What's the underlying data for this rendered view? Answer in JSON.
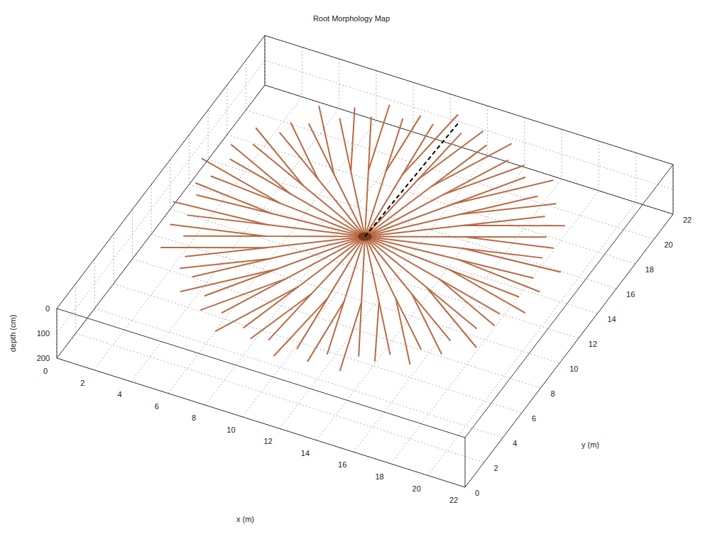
{
  "chart_data": {
    "type": "line3d",
    "title": "Root Morphology Map",
    "xlabel": "x (m)",
    "ylabel": "y (m)",
    "zlabel": "depth (cm)",
    "xlim": [
      0,
      22
    ],
    "ylim": [
      0,
      22
    ],
    "zlim": [
      0,
      200
    ],
    "xticks": [
      0,
      2,
      4,
      6,
      8,
      10,
      12,
      14,
      16,
      18,
      20,
      22
    ],
    "yticks": [
      0,
      2,
      4,
      6,
      8,
      10,
      12,
      14,
      16,
      18,
      20,
      22
    ],
    "zticks": [
      0,
      100,
      200
    ],
    "grid": true,
    "color": "#b86b45",
    "roots": [
      {
        "x": [
          11,
          15.78,
          20.4
        ],
        "y": [
          11,
          11.42,
          11.0
        ]
      },
      {
        "x": [
          15.78,
          19.67
        ],
        "y": [
          11.42,
          11.76
        ]
      },
      {
        "x": [
          11,
          15.64,
          20.65
        ],
        "y": [
          11,
          12.24,
          12.71
        ]
      },
      {
        "x": [
          15.64,
          19.4
        ],
        "y": [
          12.24,
          13.25
        ]
      },
      {
        "x": [
          11,
          15.35,
          19.55
        ],
        "y": [
          11,
          13.03,
          14.11
        ]
      },
      {
        "x": [
          15.35,
          18.88
        ],
        "y": [
          13.03,
          14.68
        ]
      },
      {
        "x": [
          11,
          14.93,
          19.31
        ],
        "y": [
          11,
          13.76,
          15.8
        ]
      },
      {
        "x": [
          14.93,
          18.13
        ],
        "y": [
          13.76,
          15.99
        ]
      },
      {
        "x": [
          11,
          14.39,
          18.2
        ],
        "y": [
          11,
          14.39,
          17.04
        ]
      },
      {
        "x": [
          14.39,
          17.15
        ],
        "y": [
          14.39,
          17.15
        ]
      },
      {
        "x": [
          11,
          13.76,
          17.3
        ],
        "y": [
          11,
          14.93,
          18.51
        ]
      },
      {
        "x": [
          13.76,
          15.99
        ],
        "y": [
          14.93,
          18.13
        ]
      },
      {
        "x": [
          11,
          13.03,
          15.55
        ],
        "y": [
          11,
          15.35,
          18.88
        ]
      },
      {
        "x": [
          13.03,
          14.68
        ],
        "y": [
          15.35,
          18.88
        ]
      },
      {
        "x": [
          11,
          12.24,
          14.28
        ],
        "y": [
          11,
          15.64,
          20.02
        ]
      },
      {
        "x": [
          12.24,
          13.25
        ],
        "y": [
          15.64,
          19.4
        ]
      },
      {
        "x": [
          11,
          11.42,
          12.64
        ],
        "y": [
          11,
          15.78,
          20.26
        ]
      },
      {
        "x": [
          11.42,
          11.76
        ],
        "y": [
          15.78,
          19.67
        ]
      },
      {
        "x": [
          11,
          10.58,
          11.0
        ],
        "y": [
          11,
          15.78,
          20.8
        ]
      },
      {
        "x": [
          10.58,
          10.24
        ],
        "y": [
          15.78,
          19.67
        ]
      },
      {
        "x": [
          11,
          9.76,
          9.42
        ],
        "y": [
          11,
          15.64,
          19.96
        ]
      },
      {
        "x": [
          9.76,
          8.75
        ],
        "y": [
          15.64,
          19.4
        ]
      },
      {
        "x": [
          11,
          8.97,
          7.72
        ],
        "y": [
          11,
          15.35,
          20.02
        ]
      },
      {
        "x": [
          8.97,
          7.32
        ],
        "y": [
          15.35,
          18.88
        ]
      },
      {
        "x": [
          11,
          8.24,
          6.3
        ],
        "y": [
          11,
          14.93,
          19.14
        ]
      },
      {
        "x": [
          8.24,
          6.01
        ],
        "y": [
          14.93,
          18.13
        ]
      },
      {
        "x": [
          11,
          7.61,
          4.7
        ],
        "y": [
          11,
          14.39,
          18.51
        ]
      },
      {
        "x": [
          7.61,
          4.85
        ],
        "y": [
          14.39,
          17.15
        ]
      },
      {
        "x": [
          11,
          7.07,
          4.03
        ],
        "y": [
          11,
          13.76,
          16.85
        ]
      },
      {
        "x": [
          7.07,
          3.87
        ],
        "y": [
          13.76,
          15.99
        ]
      },
      {
        "x": [
          11,
          6.65,
          2.69
        ],
        "y": [
          11,
          13.03,
          15.8
        ]
      },
      {
        "x": [
          6.65,
          3.12
        ],
        "y": [
          13.03,
          14.68
        ]
      },
      {
        "x": [
          11,
          6.36,
          2.16
        ],
        "y": [
          11,
          12.24,
          14.22
        ]
      },
      {
        "x": [
          6.36,
          2.6
        ],
        "y": [
          12.24,
          13.25
        ]
      },
      {
        "x": [
          11,
          6.22,
          1.35
        ],
        "y": [
          11,
          11.42,
          12.71
        ]
      },
      {
        "x": [
          6.22,
          2.33
        ],
        "y": [
          11.42,
          11.76
        ]
      },
      {
        "x": [
          11,
          6.22,
          1.9
        ],
        "y": [
          11,
          10.58,
          11.0
        ]
      },
      {
        "x": [
          6.22,
          2.33
        ],
        "y": [
          10.58,
          10.24
        ]
      },
      {
        "x": [
          11,
          6.36,
          1.54
        ],
        "y": [
          11,
          9.76,
          9.33
        ]
      },
      {
        "x": [
          6.36,
          2.6
        ],
        "y": [
          9.76,
          8.75
        ]
      },
      {
        "x": [
          11,
          6.65,
          2.16
        ],
        "y": [
          11,
          8.97,
          7.79
        ]
      },
      {
        "x": [
          6.65,
          3.12
        ],
        "y": [
          8.97,
          7.32
        ]
      },
      {
        "x": [
          11,
          7.07,
          2.51
        ],
        "y": [
          11,
          8.24,
          6.1
        ]
      },
      {
        "x": [
          7.07,
          3.87
        ],
        "y": [
          8.24,
          6.01
        ]
      },
      {
        "x": [
          11,
          7.61,
          4.03
        ],
        "y": [
          11,
          7.61,
          5.15
        ]
      },
      {
        "x": [
          7.61,
          4.85
        ],
        "y": [
          7.61,
          4.85
        ]
      },
      {
        "x": [
          11,
          8.24,
          4.83
        ],
        "y": [
          11,
          7.07,
          3.65
        ]
      },
      {
        "x": [
          8.24,
          6.01
        ],
        "y": [
          7.07,
          3.87
        ]
      },
      {
        "x": [
          11,
          8.97,
          6.3
        ],
        "y": [
          11,
          6.65,
          2.86
        ]
      },
      {
        "x": [
          8.97,
          7.32
        ],
        "y": [
          6.65,
          3.12
        ]
      },
      {
        "x": [
          11,
          9.76,
          7.65
        ],
        "y": [
          11,
          6.36,
          1.79
        ]
      },
      {
        "x": [
          9.76,
          8.75
        ],
        "y": [
          6.36,
          2.6
        ]
      },
      {
        "x": [
          11,
          10.58,
          9.42
        ],
        "y": [
          11,
          6.22,
          2.04
        ]
      },
      {
        "x": [
          10.58,
          10.24
        ],
        "y": [
          6.22,
          2.33
        ]
      },
      {
        "x": [
          11,
          11.42,
          11.0
        ],
        "y": [
          11,
          6.22,
          1.4
        ]
      },
      {
        "x": [
          11.42,
          11.76
        ],
        "y": [
          6.22,
          2.33
        ]
      },
      {
        "x": [
          11,
          12.24,
          12.64
        ],
        "y": [
          11,
          6.36,
          1.74
        ]
      },
      {
        "x": [
          12.24,
          13.25
        ],
        "y": [
          6.36,
          2.6
        ]
      },
      {
        "x": [
          11,
          13.03,
          14.35
        ],
        "y": [
          11,
          6.65,
          1.79
        ]
      },
      {
        "x": [
          13.03,
          14.68
        ],
        "y": [
          6.65,
          3.12
        ]
      },
      {
        "x": [
          11,
          13.76,
          15.55
        ],
        "y": [
          11,
          7.07,
          3.12
        ]
      },
      {
        "x": [
          13.76,
          15.99
        ],
        "y": [
          7.07,
          3.87
        ]
      },
      {
        "x": [
          11,
          14.39,
          17.17
        ],
        "y": [
          11,
          7.61,
          3.65
        ]
      },
      {
        "x": [
          14.39,
          17.15
        ],
        "y": [
          7.61,
          4.85
        ]
      },
      {
        "x": [
          11,
          14.93,
          18.2
        ],
        "y": [
          11,
          8.24,
          4.96
        ]
      },
      {
        "x": [
          14.93,
          18.13
        ],
        "y": [
          8.24,
          6.01
        ]
      },
      {
        "x": [
          11,
          15.35,
          19.49
        ],
        "y": [
          11,
          8.97,
          6.1
        ]
      },
      {
        "x": [
          15.35,
          18.88
        ],
        "y": [
          8.97,
          7.32
        ]
      },
      {
        "x": [
          11,
          15.64,
          19.55
        ],
        "y": [
          11,
          9.76,
          7.89
        ]
      },
      {
        "x": [
          15.64,
          19.4
        ],
        "y": [
          9.76,
          8.75
        ]
      },
      {
        "x": [
          11,
          15.78,
          20.46
        ],
        "y": [
          11,
          10.58,
          9.33
        ]
      },
      {
        "x": [
          15.78,
          19.67
        ],
        "y": [
          10.58,
          10.24
        ]
      }
    ],
    "series": [
      {
        "x": [
          11,
          11.3
        ],
        "y": [
          11,
          20.3
        ],
        "color": "#000000",
        "line_style": "dashed"
      }
    ]
  }
}
